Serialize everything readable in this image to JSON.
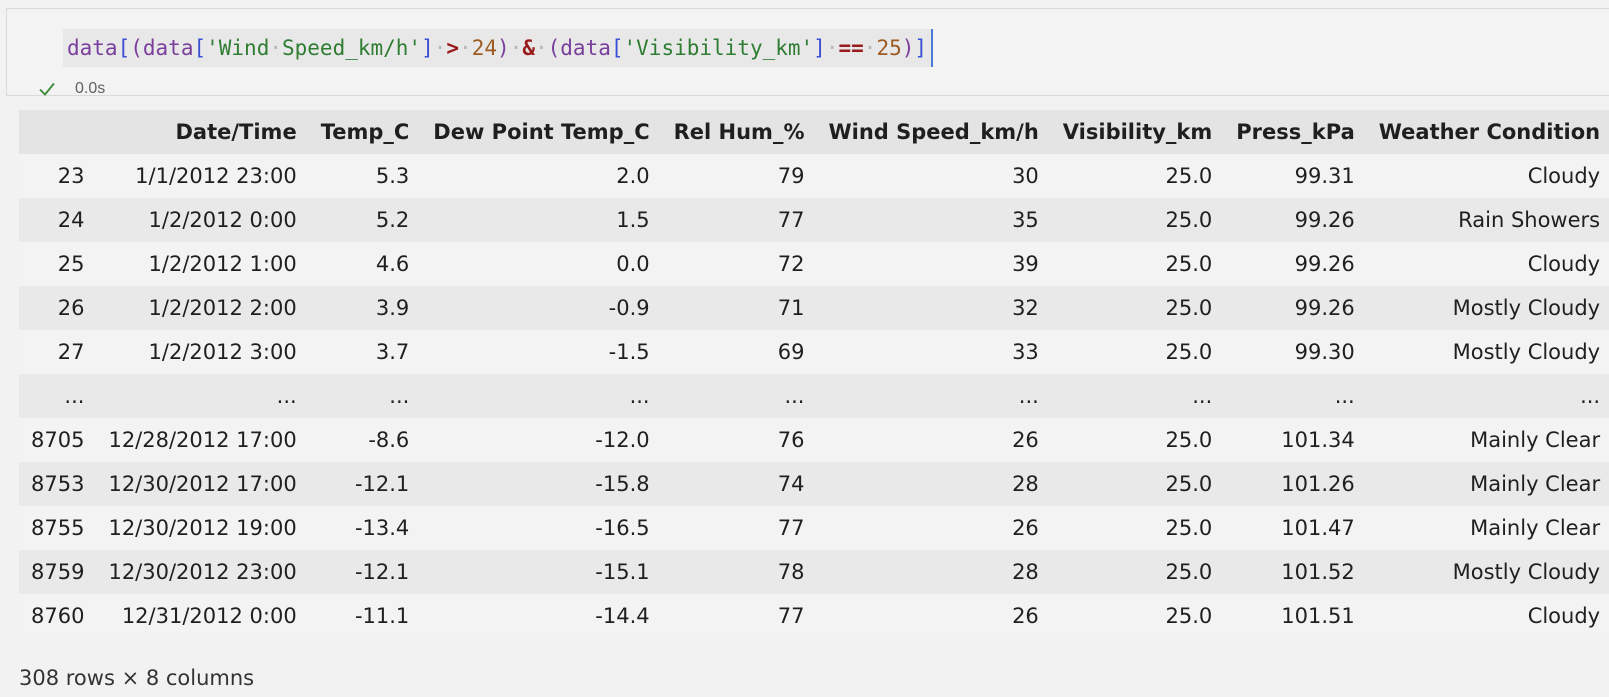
{
  "cell": {
    "code_tokens": [
      {
        "t": "data",
        "c": "tok-var"
      },
      {
        "t": "[",
        "c": "tok-br1"
      },
      {
        "t": "(",
        "c": "tok-br2"
      },
      {
        "t": "data",
        "c": "tok-var"
      },
      {
        "t": "[",
        "c": "tok-br1"
      },
      {
        "t": "'Wind",
        "c": "tok-str"
      },
      {
        "t": "·",
        "c": "tok-dot"
      },
      {
        "t": "Speed_km/h'",
        "c": "tok-str"
      },
      {
        "t": "]",
        "c": "tok-br1"
      },
      {
        "t": "·",
        "c": "tok-dot"
      },
      {
        "t": ">",
        "c": "tok-op"
      },
      {
        "t": "·",
        "c": "tok-dot"
      },
      {
        "t": "24",
        "c": "tok-num"
      },
      {
        "t": ")",
        "c": "tok-br2"
      },
      {
        "t": "·",
        "c": "tok-dot"
      },
      {
        "t": "&",
        "c": "tok-op"
      },
      {
        "t": "·",
        "c": "tok-dot"
      },
      {
        "t": "(",
        "c": "tok-br2"
      },
      {
        "t": "data",
        "c": "tok-var"
      },
      {
        "t": "[",
        "c": "tok-br1"
      },
      {
        "t": "'Visibility_km'",
        "c": "tok-str"
      },
      {
        "t": "]",
        "c": "tok-br1"
      },
      {
        "t": "·",
        "c": "tok-dot"
      },
      {
        "t": "==",
        "c": "tok-op"
      },
      {
        "t": "·",
        "c": "tok-dot"
      },
      {
        "t": "25",
        "c": "tok-num"
      },
      {
        "t": ")",
        "c": "tok-br2"
      },
      {
        "t": "]",
        "c": "tok-br1"
      }
    ],
    "status_icon": "check-icon",
    "status_color": "#388a34",
    "exec_time": "0.0s"
  },
  "table": {
    "columns": [
      "",
      "Date/Time",
      "Temp_C",
      "Dew Point Temp_C",
      "Rel Hum_%",
      "Wind Speed_km/h",
      "Visibility_km",
      "Press_kPa",
      "Weather Condition"
    ],
    "rows": [
      [
        "23",
        "1/1/2012 23:00",
        "5.3",
        "2.0",
        "79",
        "30",
        "25.0",
        "99.31",
        "Cloudy"
      ],
      [
        "24",
        "1/2/2012 0:00",
        "5.2",
        "1.5",
        "77",
        "35",
        "25.0",
        "99.26",
        "Rain Showers"
      ],
      [
        "25",
        "1/2/2012 1:00",
        "4.6",
        "0.0",
        "72",
        "39",
        "25.0",
        "99.26",
        "Cloudy"
      ],
      [
        "26",
        "1/2/2012 2:00",
        "3.9",
        "-0.9",
        "71",
        "32",
        "25.0",
        "99.26",
        "Mostly Cloudy"
      ],
      [
        "27",
        "1/2/2012 3:00",
        "3.7",
        "-1.5",
        "69",
        "33",
        "25.0",
        "99.30",
        "Mostly Cloudy"
      ],
      [
        "...",
        "...",
        "...",
        "...",
        "...",
        "...",
        "...",
        "...",
        "..."
      ],
      [
        "8705",
        "12/28/2012 17:00",
        "-8.6",
        "-12.0",
        "76",
        "26",
        "25.0",
        "101.34",
        "Mainly Clear"
      ],
      [
        "8753",
        "12/30/2012 17:00",
        "-12.1",
        "-15.8",
        "74",
        "28",
        "25.0",
        "101.26",
        "Mainly Clear"
      ],
      [
        "8755",
        "12/30/2012 19:00",
        "-13.4",
        "-16.5",
        "77",
        "26",
        "25.0",
        "101.47",
        "Mainly Clear"
      ],
      [
        "8759",
        "12/30/2012 23:00",
        "-12.1",
        "-15.1",
        "78",
        "28",
        "25.0",
        "101.52",
        "Mostly Cloudy"
      ],
      [
        "8760",
        "12/31/2012 0:00",
        "-11.1",
        "-14.4",
        "77",
        "26",
        "25.0",
        "101.51",
        "Cloudy"
      ]
    ]
  },
  "footer": {
    "shape": "308 rows × 8 columns"
  }
}
